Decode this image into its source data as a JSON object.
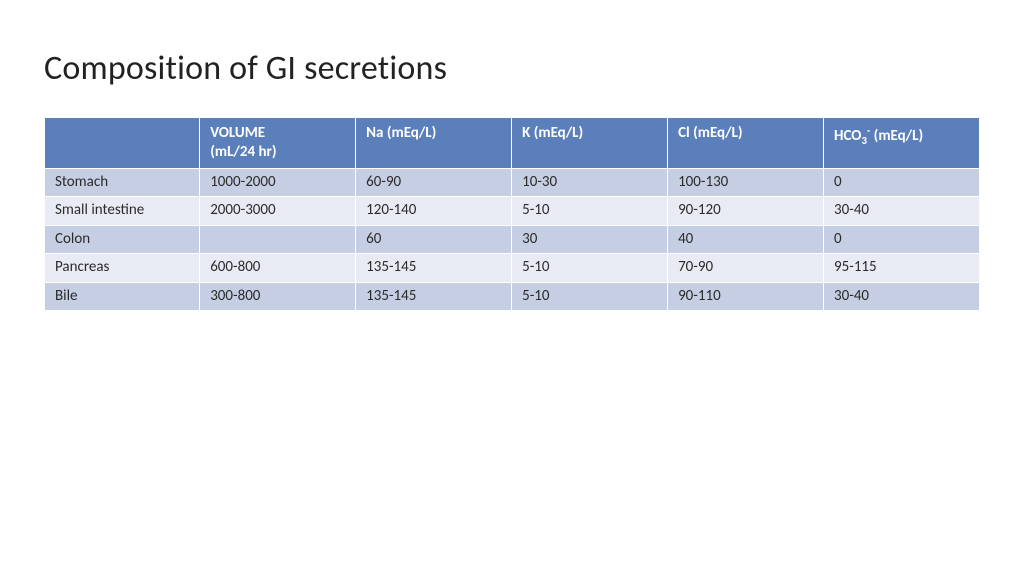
{
  "title": "Composition of GI secretions",
  "table": {
    "type": "table",
    "header_bg": "#5b7fbb",
    "header_fg": "#ffffff",
    "row_colors_alt": [
      "#c5cee2",
      "#e8ebf3"
    ],
    "border_color": "#ffffff",
    "title_fontsize": 34,
    "body_fontsize": 15,
    "columns": [
      {
        "key": "label",
        "heading_html": ""
      },
      {
        "key": "volume",
        "heading_html": "VOLUME<br>(mL/24 hr)"
      },
      {
        "key": "na",
        "heading_html": "Na (mEq/L)"
      },
      {
        "key": "k",
        "heading_html": "K (mEq/L)"
      },
      {
        "key": "cl",
        "heading_html": "Cl (mEq/L)"
      },
      {
        "key": "hco3",
        "heading_html": "HCO<sub>3</sub><sup>-</sup> (mEq/L)"
      }
    ],
    "rows": [
      {
        "label": "Stomach",
        "volume": "1000-2000",
        "na": "60-90",
        "k": "10-30",
        "cl": "100-130",
        "hco3": "0"
      },
      {
        "label": "Small intestine",
        "volume": "2000-3000",
        "na": "120-140",
        "k": "5-10",
        "cl": "90-120",
        "hco3": "30-40"
      },
      {
        "label": "Colon",
        "volume": "",
        "na": "60",
        "k": "30",
        "cl": "40",
        "hco3": "0"
      },
      {
        "label": "Pancreas",
        "volume": "600-800",
        "na": "135-145",
        "k": "5-10",
        "cl": "70-90",
        "hco3": "95-115"
      },
      {
        "label": "Bile",
        "volume": "300-800",
        "na": "135-145",
        "k": "5-10",
        "cl": "90-110",
        "hco3": "30-40"
      }
    ]
  }
}
